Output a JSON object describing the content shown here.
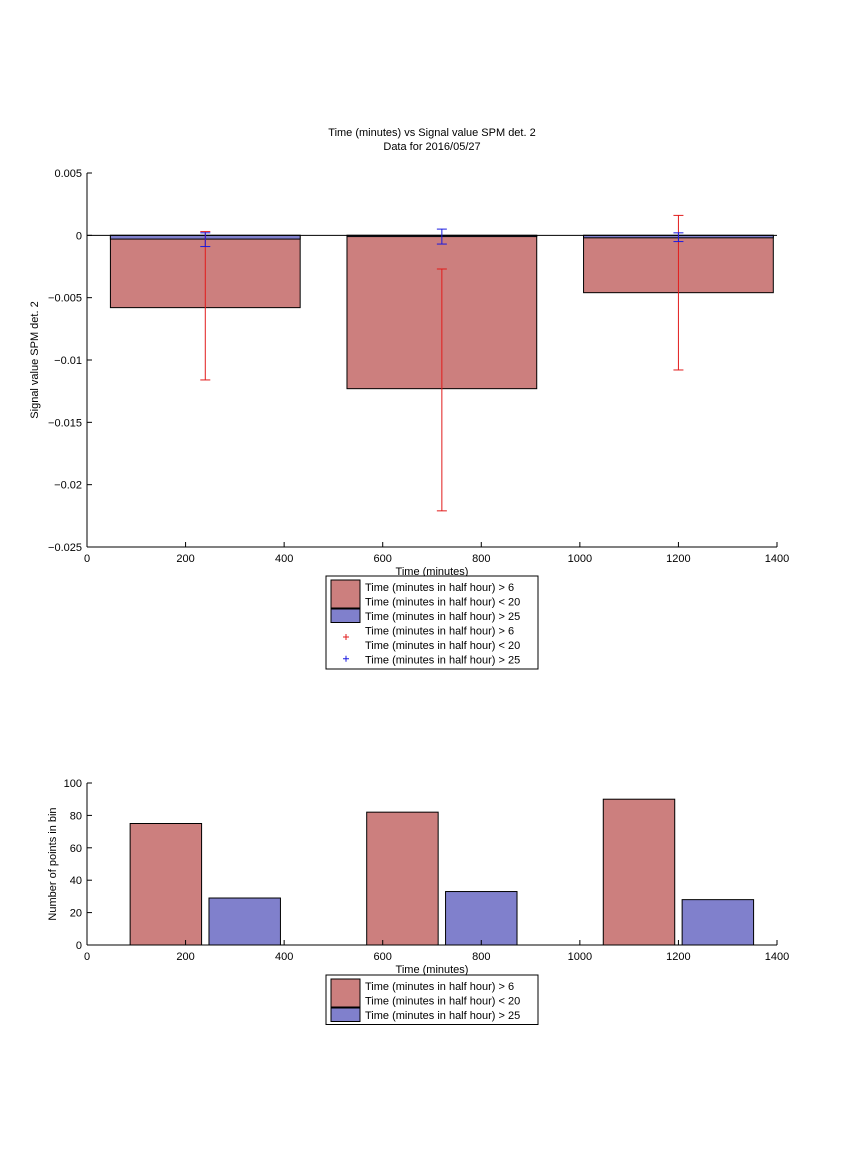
{
  "figure": {
    "title": "Time (minutes) vs Signal value SPM det. 2",
    "subtitle": "Data for 2016/05/27"
  },
  "colors": {
    "series1": "#cc7f7e",
    "series2": "#8080cc",
    "error1": "#e21b1b",
    "error2": "#1a1ae0",
    "axis": "#000000"
  },
  "chart_data": [
    {
      "type": "bar",
      "title": "Time (minutes) vs Signal value SPM det. 2",
      "subtitle": "Data for 2016/05/27",
      "xlabel": "Time (minutes)",
      "ylabel": "Signal value SPM det. 2",
      "xlim": [
        0,
        1400
      ],
      "ylim": [
        -0.025,
        0.005
      ],
      "xticks": [
        0,
        200,
        400,
        600,
        800,
        1000,
        1200,
        1400
      ],
      "xtick_labels": [
        "0",
        "200",
        "400",
        "600",
        "800",
        "1000",
        "1200",
        "1400"
      ],
      "yticks": [
        -0.025,
        -0.02,
        -0.015,
        -0.01,
        -0.005,
        0,
        0.005
      ],
      "ytick_labels": [
        "−0.025",
        "−0.02",
        "−0.015",
        "−0.01",
        "−0.005",
        "0",
        "0.005"
      ],
      "x": [
        240,
        720,
        1200
      ],
      "bar_span": 385,
      "series": [
        {
          "name": "Time (minutes in half hour) > 6\nTime (minutes in half hour) < 20",
          "values": [
            -0.0058,
            -0.0123,
            -0.0046
          ]
        },
        {
          "name": "Time (minutes in half hour) > 25",
          "values": [
            -0.0003,
            -0.0001,
            -0.0002
          ]
        }
      ],
      "errorbars": [
        {
          "name": "Time (minutes in half hour) > 6\nTime (minutes in half hour) < 20",
          "center": [
            -0.0058,
            -0.0123,
            -0.0046
          ],
          "lower": [
            -0.0116,
            -0.0221,
            -0.0108
          ],
          "upper": [
            0.0003,
            -0.0027,
            0.0016
          ]
        },
        {
          "name": "Time (minutes in half hour) > 25",
          "center": [
            -0.0003,
            -0.0001,
            -0.0002
          ],
          "lower": [
            -0.0009,
            -0.0007,
            -0.0005
          ],
          "upper": [
            0.0002,
            0.0005,
            0.0002
          ]
        }
      ],
      "legend": {
        "placement": "below",
        "entries": [
          {
            "kind": "patch",
            "series": 0,
            "lines": [
              "Time (minutes in half hour) > 6",
              "Time (minutes in half hour) < 20"
            ]
          },
          {
            "kind": "patch",
            "series": 1,
            "lines": [
              "Time (minutes in half hour) > 25"
            ]
          },
          {
            "kind": "marker",
            "series": 0,
            "lines": [
              "Time (minutes in half hour) > 6",
              "Time (minutes in half hour) < 20"
            ]
          },
          {
            "kind": "marker",
            "series": 1,
            "lines": [
              "Time (minutes in half hour) > 25"
            ]
          }
        ]
      }
    },
    {
      "type": "bar",
      "title": "",
      "xlabel": "Time (minutes)",
      "ylabel": "Number of points in bin",
      "xlim": [
        0,
        1400
      ],
      "ylim": [
        0,
        100
      ],
      "xticks": [
        0,
        200,
        400,
        600,
        800,
        1000,
        1200,
        1400
      ],
      "xtick_labels": [
        "0",
        "200",
        "400",
        "600",
        "800",
        "1000",
        "1200",
        "1400"
      ],
      "yticks": [
        0,
        20,
        40,
        60,
        80,
        100
      ],
      "ytick_labels": [
        "0",
        "20",
        "40",
        "60",
        "80",
        "100"
      ],
      "categories": [
        240,
        720,
        1200
      ],
      "series": [
        {
          "name": "Time (minutes in half hour) > 6\nTime (minutes in half hour) < 20",
          "x": [
            160,
            640,
            1120
          ],
          "values": [
            75,
            82,
            90
          ]
        },
        {
          "name": "Time (minutes in half hour) > 25",
          "x": [
            320,
            800,
            1280
          ],
          "values": [
            29,
            33,
            28
          ]
        }
      ],
      "bar_span": 145,
      "legend": {
        "placement": "below",
        "entries": [
          {
            "kind": "patch",
            "series": 0,
            "lines": [
              "Time (minutes in half hour) > 6",
              "Time (minutes in half hour) < 20"
            ]
          },
          {
            "kind": "patch",
            "series": 1,
            "lines": [
              "Time (minutes in half hour) > 25"
            ]
          }
        ]
      }
    }
  ]
}
